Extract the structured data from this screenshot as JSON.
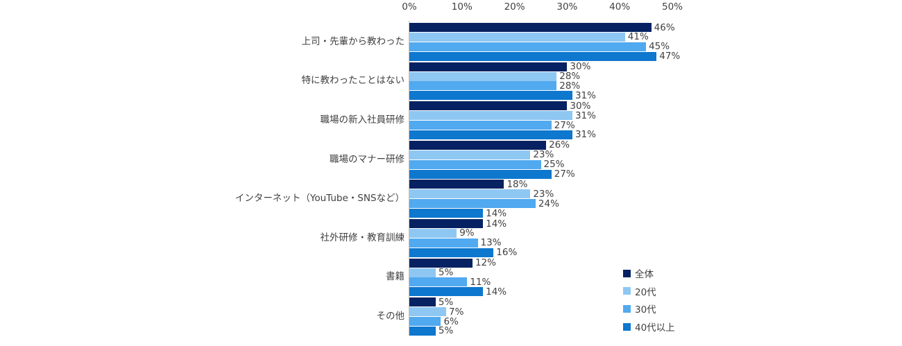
{
  "chart_data": {
    "type": "bar",
    "orientation": "horizontal",
    "title": "",
    "categories": [
      "上司・先輩から教わった",
      "特に教わったことはない",
      "職場の新入社員研修",
      "職場のマナー研修",
      "インターネット（YouTube・SNSなど）",
      "社外研修・教育訓練",
      "書籍",
      "その他"
    ],
    "series": [
      {
        "name": "全体",
        "color": "#062262",
        "values": [
          46,
          30,
          30,
          26,
          18,
          14,
          12,
          5
        ],
        "labels": [
          "46%",
          "30%",
          "30%",
          "26%",
          "18%",
          "14%",
          "12%",
          "5%"
        ]
      },
      {
        "name": "20代",
        "color": "#8FC7F3",
        "values": [
          41,
          28,
          31,
          23,
          23,
          9,
          5,
          7
        ],
        "labels": [
          "41%",
          "28%",
          "31%",
          "23%",
          "23%",
          "9%",
          "5%",
          "7%"
        ]
      },
      {
        "name": "30代",
        "color": "#51A9F0",
        "values": [
          45,
          28,
          27,
          25,
          24,
          13,
          11,
          6
        ],
        "labels": [
          "45%",
          "28%",
          "27%",
          "25%",
          "24%",
          "13%",
          "11%",
          "6%"
        ]
      },
      {
        "name": "40代以上",
        "color": "#0E77CE",
        "values": [
          47,
          31,
          31,
          27,
          14,
          16,
          14,
          5
        ],
        "labels": [
          "47%",
          "31%",
          "31%",
          "27%",
          "14%",
          "16%",
          "14%",
          "5%"
        ]
      }
    ],
    "x_axis": {
      "position": "top",
      "max": 50,
      "ticks": [
        {
          "label": "0%",
          "value": 0
        },
        {
          "label": "10%",
          "value": 10
        },
        {
          "label": "20%",
          "value": 20
        },
        {
          "label": "30%",
          "value": 30
        },
        {
          "label": "40%",
          "value": 40
        },
        {
          "label": "50%",
          "value": 50
        }
      ]
    },
    "legend": {
      "position": "bottom-right",
      "entries": [
        "全体",
        "20代",
        "30代",
        "40代以上"
      ]
    },
    "grid": false,
    "value_suffix": "%"
  },
  "style": {
    "axis_line_color": "#BFBFBF",
    "text_color": "#404040",
    "background": "#FFFFFF"
  }
}
